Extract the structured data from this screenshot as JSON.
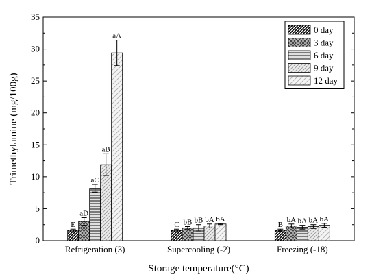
{
  "chart_data": {
    "type": "bar",
    "xlabel": "Storage temperature(°C)",
    "ylabel": "Trimethylamine (mg/100g)",
    "ylim": [
      0,
      35
    ],
    "yticks": [
      0,
      5,
      10,
      15,
      20,
      25,
      30,
      35
    ],
    "categories": [
      "Refrigeration (3)",
      "Supercooling (-2)",
      "Freezing (-18)"
    ],
    "legend_position": "top-right",
    "grid": false,
    "series": [
      {
        "name": "0 day",
        "pattern": "dense-diagonal",
        "values": [
          1.6,
          1.6,
          1.6
        ],
        "errors": [
          0.2,
          0.2,
          0.2
        ],
        "labels": [
          "E",
          "C",
          "B"
        ]
      },
      {
        "name": "3 day",
        "pattern": "crosshatch",
        "values": [
          3.0,
          2.0,
          2.3
        ],
        "errors": [
          0.6,
          0.2,
          0.3
        ],
        "labels": [
          "aD",
          "bB",
          "bA"
        ]
      },
      {
        "name": "6 day",
        "pattern": "horizontal",
        "values": [
          8.2,
          2.0,
          2.1
        ],
        "errors": [
          0.6,
          0.5,
          0.3
        ],
        "labels": [
          "aC",
          "bB",
          "bA"
        ]
      },
      {
        "name": "9 day",
        "pattern": "light-diagonal",
        "values": [
          11.9,
          2.3,
          2.2
        ],
        "errors": [
          1.7,
          0.3,
          0.3
        ],
        "labels": [
          "aB",
          "bA",
          "bA"
        ]
      },
      {
        "name": "12 day",
        "pattern": "sparse-diagonal",
        "values": [
          29.4,
          2.6,
          2.4
        ],
        "errors": [
          2.0,
          0.1,
          0.3
        ],
        "labels": [
          "aA",
          "bA",
          "bA"
        ]
      }
    ]
  }
}
